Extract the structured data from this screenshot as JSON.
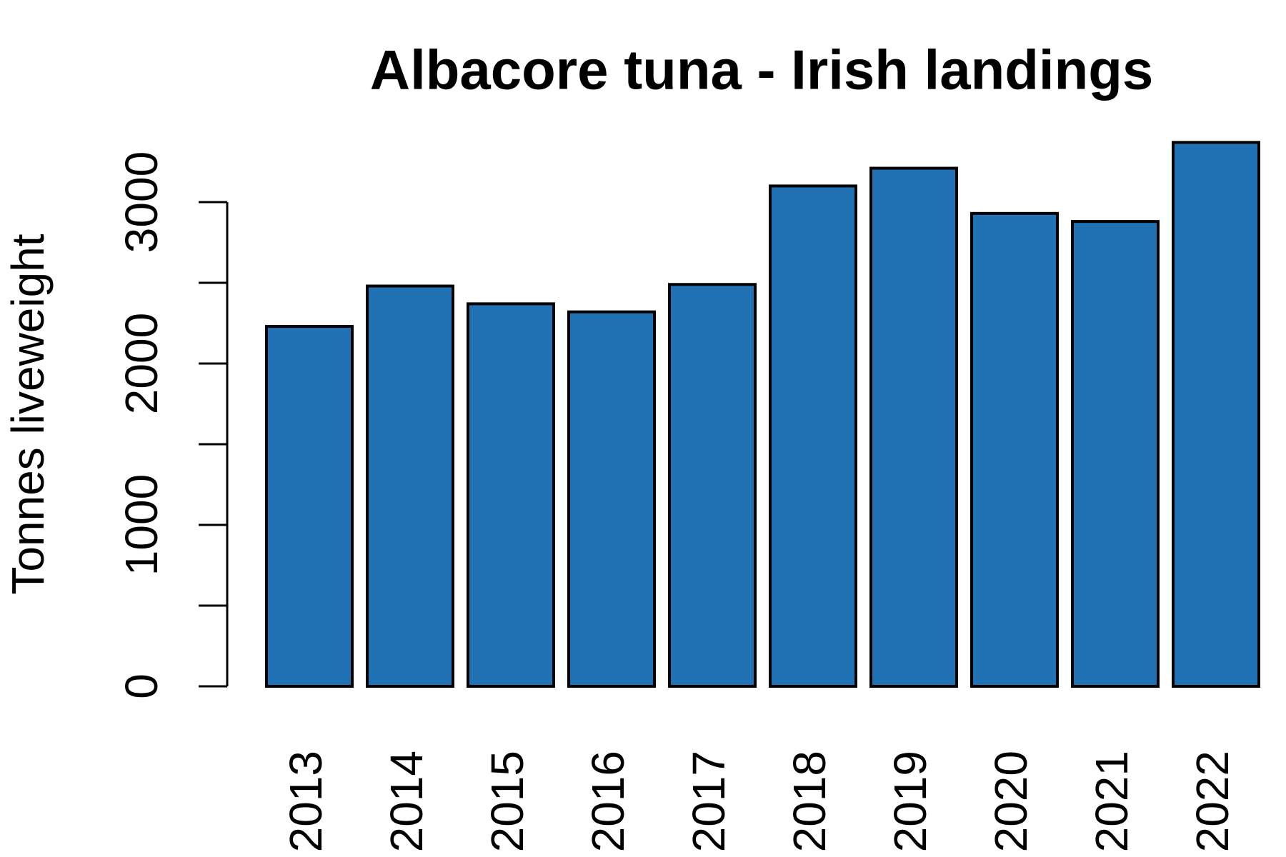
{
  "chart_data": {
    "type": "bar",
    "title": "Albacore tuna - Irish landings",
    "y_label": "Tonnes liveweight",
    "categories": [
      "2013",
      "2014",
      "2015",
      "2016",
      "2017",
      "2018",
      "2019",
      "2020",
      "2021",
      "2022"
    ],
    "values": [
      2230,
      2480,
      2370,
      2320,
      2490,
      3100,
      3210,
      2930,
      2880,
      3370
    ],
    "color": "#2171b5",
    "ylim": [
      0,
      3500
    ],
    "yticks": [
      0,
      1000,
      2000,
      3000
    ],
    "minor_yticks": [
      500,
      1500,
      2500
    ],
    "grid": false
  }
}
